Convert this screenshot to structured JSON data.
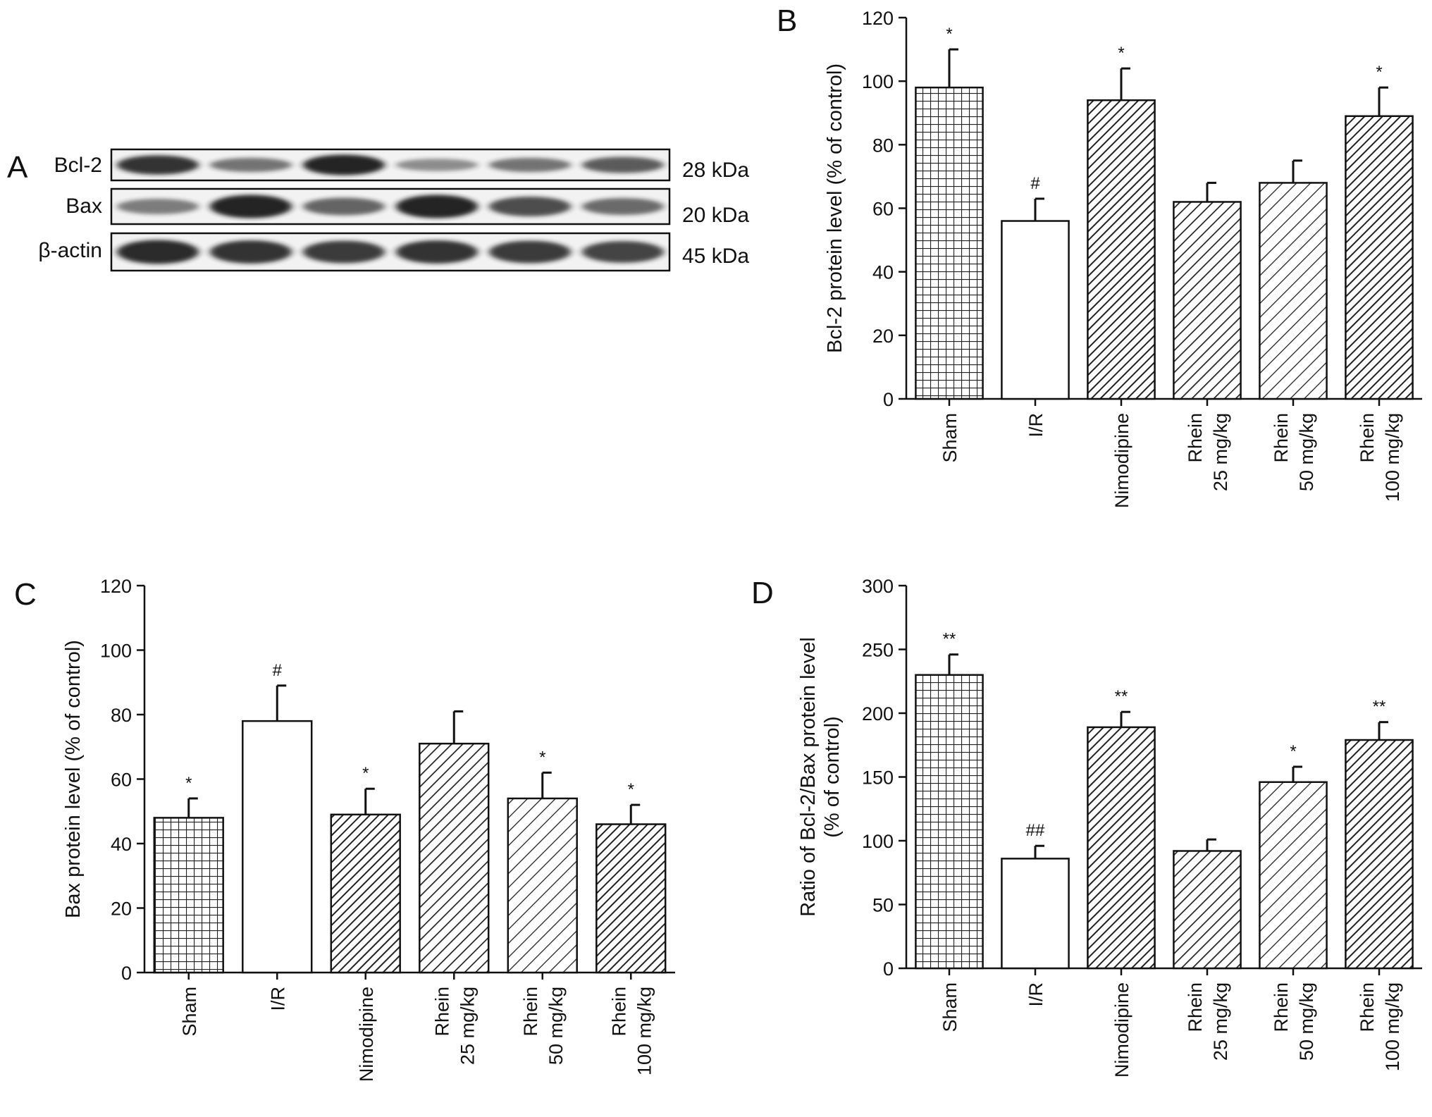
{
  "panels": {
    "A": "A",
    "B": "B",
    "C": "C",
    "D": "D"
  },
  "western_blot": {
    "rows": [
      {
        "label": "Bcl-2",
        "kda": "28 kDa",
        "intensity": [
          0.85,
          0.45,
          0.95,
          0.3,
          0.45,
          0.6
        ]
      },
      {
        "label": "Bax",
        "kda": "20 kDa",
        "intensity": [
          0.4,
          0.95,
          0.55,
          0.95,
          0.7,
          0.5
        ]
      },
      {
        "label": "β-actin",
        "kda": "45 kDa",
        "intensity": [
          0.9,
          0.85,
          0.8,
          0.85,
          0.8,
          0.75
        ]
      }
    ]
  },
  "patterns": [
    "grid",
    "white",
    "diag-dense",
    "diag-medium",
    "diag-sparse",
    "diag-dense"
  ],
  "colors": {
    "bar_stroke": "#111111",
    "pattern_ink": "#222222",
    "band": "#1a1a1a"
  },
  "chart_data": [
    {
      "panel": "B",
      "type": "bar",
      "categories": [
        [
          "Sham"
        ],
        [
          "I/R"
        ],
        [
          "Nimodipine"
        ],
        [
          "Rhein",
          "25 mg/kg"
        ],
        [
          "Rhein",
          "50 mg/kg"
        ],
        [
          "Rhein",
          "100 mg/kg"
        ]
      ],
      "values": [
        98,
        56,
        94,
        62,
        68,
        89
      ],
      "errors": [
        12,
        7,
        10,
        6,
        7,
        9
      ],
      "annotations": [
        "*",
        "#",
        "*",
        "",
        "",
        "*"
      ],
      "ylabel": [
        "Bcl-2 protein level (% of control)"
      ],
      "ylim": [
        0,
        120
      ],
      "yticks": [
        0,
        20,
        40,
        60,
        80,
        100,
        120
      ]
    },
    {
      "panel": "C",
      "type": "bar",
      "categories": [
        [
          "Sham"
        ],
        [
          "I/R"
        ],
        [
          "Nimodipine"
        ],
        [
          "Rhein",
          "25 mg/kg"
        ],
        [
          "Rhein",
          "50 mg/kg"
        ],
        [
          "Rhein",
          "100 mg/kg"
        ]
      ],
      "values": [
        48,
        78,
        49,
        71,
        54,
        46
      ],
      "errors": [
        6,
        11,
        8,
        10,
        8,
        6
      ],
      "annotations": [
        "*",
        "#",
        "*",
        "",
        "*",
        "*"
      ],
      "ylabel": [
        "Bax protein level (% of control)"
      ],
      "ylim": [
        0,
        120
      ],
      "yticks": [
        0,
        20,
        40,
        60,
        80,
        100,
        120
      ]
    },
    {
      "panel": "D",
      "type": "bar",
      "categories": [
        [
          "Sham"
        ],
        [
          "I/R"
        ],
        [
          "Nimodipine"
        ],
        [
          "Rhein",
          "25 mg/kg"
        ],
        [
          "Rhein",
          "50 mg/kg"
        ],
        [
          "Rhein",
          "100 mg/kg"
        ]
      ],
      "values": [
        230,
        86,
        189,
        92,
        146,
        179
      ],
      "errors": [
        16,
        10,
        12,
        9,
        12,
        14
      ],
      "annotations": [
        "**",
        "##",
        "**",
        "",
        "*",
        "**"
      ],
      "ylabel": [
        "Ratio of Bcl-2/Bax protein level",
        "(% of control)"
      ],
      "ylim": [
        0,
        300
      ],
      "yticks": [
        0,
        50,
        100,
        150,
        200,
        250,
        300
      ]
    }
  ]
}
